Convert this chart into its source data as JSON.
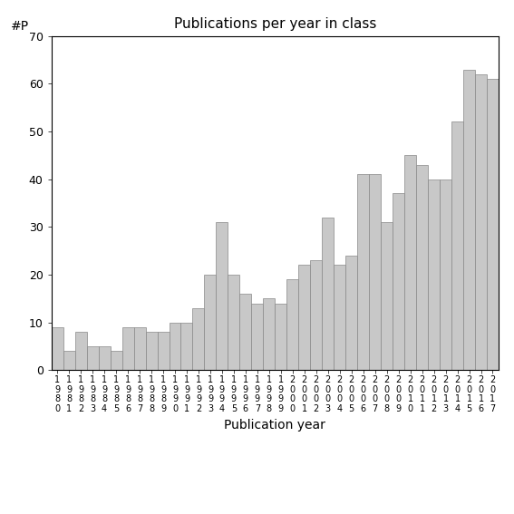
{
  "title": "Publications per year in class",
  "xlabel": "Publication year",
  "ylabel": "#P",
  "bar_color": "#c8c8c8",
  "bar_edgecolor": "#888888",
  "ylim": [
    0,
    70
  ],
  "yticks": [
    0,
    10,
    20,
    30,
    40,
    50,
    60,
    70
  ],
  "years": [
    1980,
    1981,
    1982,
    1983,
    1984,
    1985,
    1986,
    1987,
    1988,
    1989,
    1990,
    1991,
    1992,
    1993,
    1994,
    1995,
    1996,
    1997,
    1998,
    1999,
    2000,
    2001,
    2002,
    2003,
    2004,
    2005,
    2006,
    2007,
    2008,
    2009,
    2010,
    2011,
    2012,
    2013,
    2014,
    2015,
    2016,
    2017
  ],
  "values": [
    9,
    4,
    8,
    5,
    5,
    4,
    9,
    9,
    8,
    8,
    10,
    10,
    13,
    20,
    31,
    20,
    16,
    14,
    15,
    14,
    19,
    22,
    23,
    32,
    22,
    24,
    41,
    41,
    31,
    37,
    45,
    43,
    40,
    40,
    52,
    63,
    62,
    61
  ]
}
